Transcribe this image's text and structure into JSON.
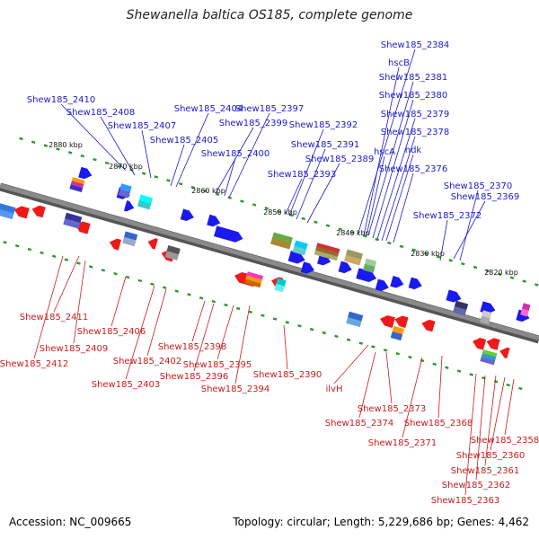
{
  "title": "Shewanella baltica OS185, complete genome",
  "accession": "Accession: NC_009665",
  "summary": "Topology: circular; Length: 5,229,686 bp; Genes: 4,462",
  "colors": {
    "backbone": "#8a8a8a",
    "forward": "#1a1aee",
    "reverse": "#ee1a1a",
    "forward_label": "#1a1acc",
    "reverse_label": "#cc1a1a",
    "tick": "#2a9a2a"
  },
  "icons": {
    "forward_gene": "right-arrow",
    "reverse_gene": "left-arrow"
  },
  "scale": [
    "2880 kbp",
    "2870 kbp",
    "2860 kbp",
    "2850 kbp",
    "2840 kbp",
    "2830 kbp",
    "2820 kbp"
  ],
  "forward_labels": [
    "Shew185_2384",
    "hscB",
    "Shew185_2381",
    "Shew185_2380",
    "Shew185_2379",
    "Shew185_2378",
    "ndk",
    "hscA",
    "Shew185_2376",
    "Shew185_2410",
    "Shew185_2408",
    "Shew185_2407",
    "Shew185_2404",
    "Shew185_2397",
    "Shew185_2399",
    "Shew185_2405",
    "Shew185_2392",
    "Shew185_2391",
    "Shew185_2389",
    "Shew185_2400",
    "Shew185_2393",
    "Shew185_2370",
    "Shew185_2369",
    "Shew185_2372"
  ],
  "reverse_labels": [
    "Shew185_2411",
    "Shew185_2406",
    "Shew185_2409",
    "Shew185_2412",
    "Shew185_2398",
    "Shew185_2402",
    "Shew185_2395",
    "Shew185_2396",
    "Shew185_2403",
    "Shew185_2394",
    "Shew185_2390",
    "ilvH",
    "Shew185_2373",
    "Shew185_2374",
    "Shew185_2368",
    "Shew185_2371",
    "Shew185_2358",
    "Shew185_2360",
    "Shew185_2361",
    "Shew185_2362",
    "Shew185_2363"
  ]
}
